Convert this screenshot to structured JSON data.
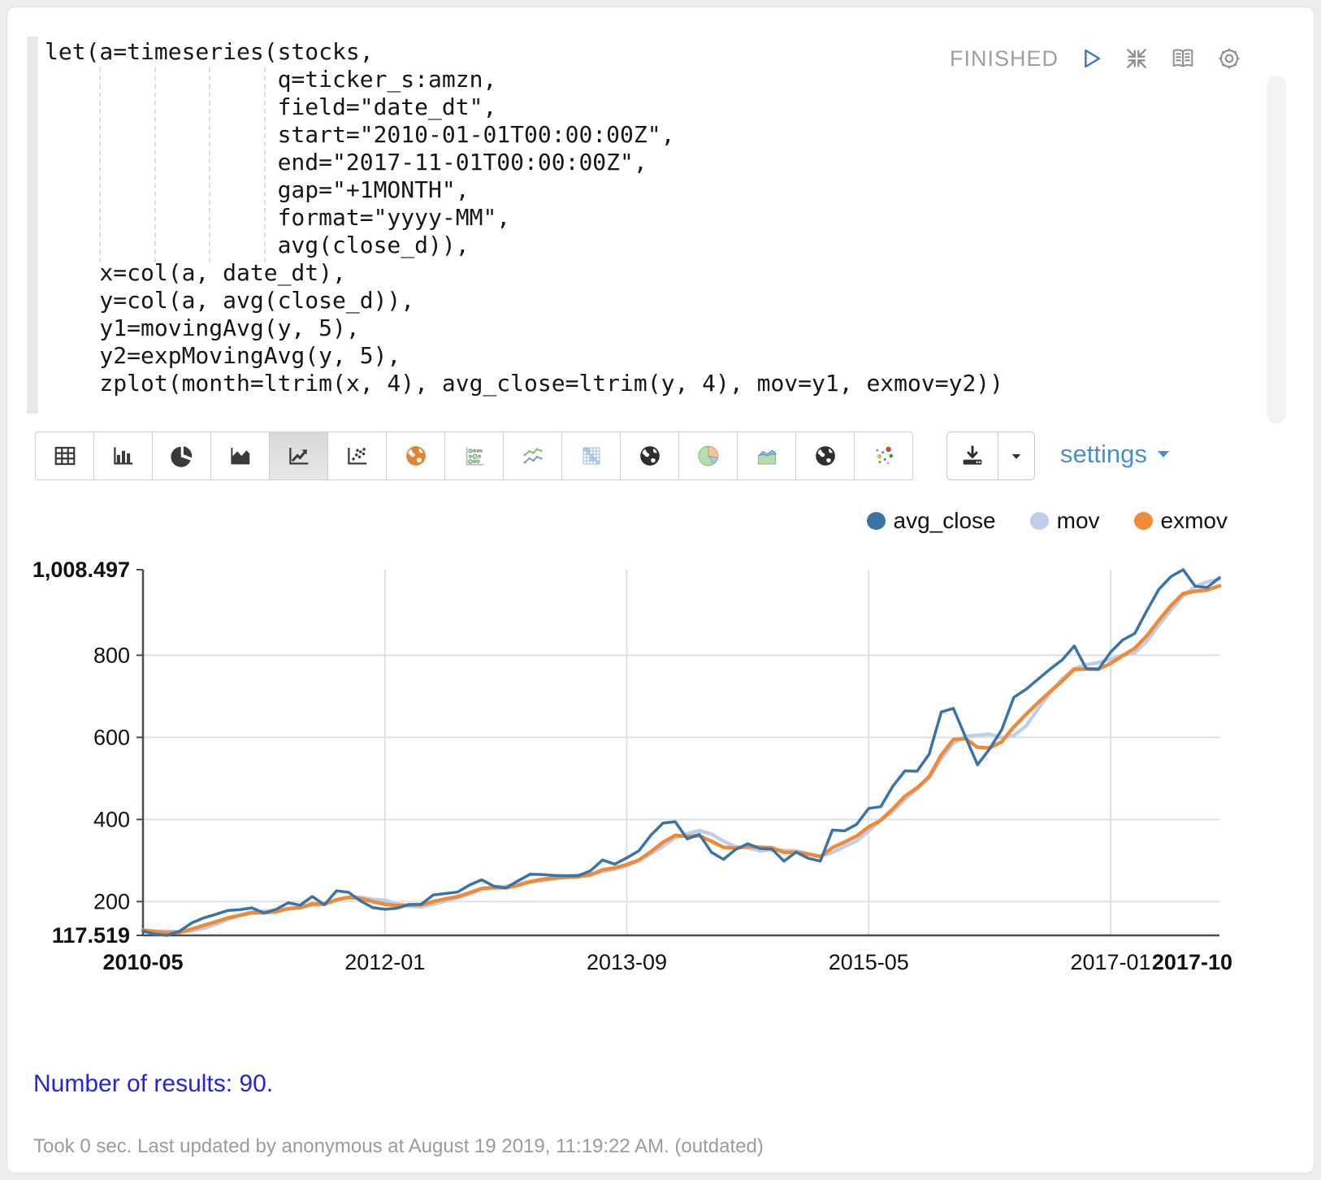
{
  "paragraph": {
    "status": "FINISHED",
    "code_lines": [
      "let(a=timeseries(stocks,",
      "                 q=ticker_s:amzn,",
      "                 field=\"date_dt\",",
      "                 start=\"2010-01-01T00:00:00Z\",",
      "                 end=\"2017-11-01T00:00:00Z\",",
      "                 gap=\"+1MONTH\",",
      "                 format=\"yyyy-MM\",",
      "                 avg(close_d)),",
      "    x=col(a, date_dt),",
      "    y=col(a, avg(close_d)),",
      "    y1=movingAvg(y, 5),",
      "    y2=expMovingAvg(y, 5),",
      "    zplot(month=ltrim(x, 4), avg_close=ltrim(y, 4), mov=y1, exmov=y2))"
    ],
    "results_text": "Number of results: 90.",
    "footer_text": "Took 0 sec. Last updated by anonymous at August 19 2019, 11:19:22 AM. (outdated)"
  },
  "toolbar": {
    "settings_label": "settings",
    "chart_buttons": [
      {
        "icon": "table",
        "selected": false
      },
      {
        "icon": "bar-chart",
        "selected": false
      },
      {
        "icon": "pie-chart",
        "selected": false
      },
      {
        "icon": "area-chart",
        "selected": false
      },
      {
        "icon": "line-chart",
        "selected": true
      },
      {
        "icon": "scatter-chart",
        "selected": false
      },
      {
        "icon": "globe-orange",
        "selected": false
      },
      {
        "icon": "bubble-chart",
        "selected": false
      },
      {
        "icon": "multi-line-chart",
        "selected": false
      },
      {
        "icon": "heatmap",
        "selected": false
      },
      {
        "icon": "globe-dark",
        "selected": false
      },
      {
        "icon": "pie-colored",
        "selected": false
      },
      {
        "icon": "area-colored",
        "selected": false
      },
      {
        "icon": "globe-dark-2",
        "selected": false
      },
      {
        "icon": "scatter-colored",
        "selected": false
      }
    ]
  },
  "legend": [
    {
      "label": "avg_close",
      "color": "#3a73a6"
    },
    {
      "label": "mov",
      "color": "#bdcfe9"
    },
    {
      "label": "exmov",
      "color": "#ee8a38"
    }
  ],
  "chart_data": {
    "type": "line",
    "title": "",
    "xlabel": "",
    "ylabel": "",
    "grid": true,
    "legend_position": "top-right",
    "ylim": [
      117.519,
      1008.497
    ],
    "x": [
      "2010-05",
      "2010-06",
      "2010-07",
      "2010-08",
      "2010-09",
      "2010-10",
      "2010-11",
      "2010-12",
      "2011-01",
      "2011-02",
      "2011-03",
      "2011-04",
      "2011-05",
      "2011-06",
      "2011-07",
      "2011-08",
      "2011-09",
      "2011-10",
      "2011-11",
      "2011-12",
      "2012-01",
      "2012-02",
      "2012-03",
      "2012-04",
      "2012-05",
      "2012-06",
      "2012-07",
      "2012-08",
      "2012-09",
      "2012-10",
      "2012-11",
      "2012-12",
      "2013-01",
      "2013-02",
      "2013-03",
      "2013-04",
      "2013-05",
      "2013-06",
      "2013-07",
      "2013-08",
      "2013-09",
      "2013-10",
      "2013-11",
      "2013-12",
      "2014-01",
      "2014-02",
      "2014-03",
      "2014-04",
      "2014-05",
      "2014-06",
      "2014-07",
      "2014-08",
      "2014-09",
      "2014-10",
      "2014-11",
      "2014-12",
      "2015-01",
      "2015-02",
      "2015-03",
      "2015-04",
      "2015-05",
      "2015-06",
      "2015-07",
      "2015-08",
      "2015-09",
      "2015-10",
      "2015-11",
      "2015-12",
      "2016-01",
      "2016-02",
      "2016-03",
      "2016-04",
      "2016-05",
      "2016-06",
      "2016-07",
      "2016-08",
      "2016-09",
      "2016-10",
      "2016-11",
      "2016-12",
      "2017-01",
      "2017-02",
      "2017-03",
      "2017-04",
      "2017-05",
      "2017-06",
      "2017-07",
      "2017-08",
      "2017-09",
      "2017-10"
    ],
    "series": [
      {
        "name": "avg_close",
        "color": "#3a73a6",
        "values": [
          127.9,
          120.3,
          117.519,
          127.4,
          147.5,
          159.9,
          168.6,
          178.1,
          180.0,
          184.7,
          172.0,
          180.9,
          197.0,
          191.1,
          212.3,
          192.0,
          226.0,
          222.4,
          201.2,
          185.0,
          181.0,
          183.6,
          192.9,
          193.1,
          216.2,
          219.4,
          223.0,
          240.2,
          252.9,
          237.5,
          232.9,
          250.4,
          266.4,
          265.9,
          263.4,
          262.9,
          263.1,
          275.0,
          301.2,
          290.9,
          306.4,
          323.7,
          361.8,
          391.3,
          394.6,
          352.6,
          363.6,
          320.1,
          302.6,
          327.0,
          340.6,
          329.2,
          327.7,
          298.4,
          320.5,
          305.5,
          298.4,
          374.1,
          372.1,
          388.0,
          426.9,
          430.9,
          481.0,
          518.4,
          517.4,
          559.1,
          661.8,
          670.6,
          601.1,
          533.3,
          571.9,
          618.6,
          697.5,
          716.9,
          741.6,
          766.3,
          788.8,
          822.6,
          767.3,
          766.0,
          807.5,
          837.3,
          853.1,
          909.0,
          961.2,
          991.9,
          1008.497,
          967.9,
          965.4,
          989.0
        ]
      },
      {
        "name": "mov",
        "color": "#bdcfe9",
        "values": [
          129.2,
          127.8,
          127.6,
          126.8,
          128.1,
          134.5,
          144.2,
          156.3,
          166.8,
          174.3,
          176.7,
          179.1,
          182.9,
          185.1,
          190.7,
          194.7,
          203.7,
          208.8,
          210.8,
          205.3,
          203.1,
          194.6,
          188.7,
          187.1,
          193.4,
          201.0,
          208.9,
          218.4,
          230.3,
          234.6,
          237.3,
          242.8,
          248.0,
          250.6,
          255.8,
          261.8,
          264.3,
          266.1,
          273.1,
          278.6,
          287.3,
          299.4,
          316.8,
          334.8,
          355.6,
          364.8,
          372.8,
          364.4,
          346.7,
          333.2,
          330.8,
          323.9,
          325.4,
          324.6,
          323.3,
          316.3,
          310.1,
          319.4,
          334.1,
          347.6,
          371.9,
          398.4,
          419.8,
          449.0,
          474.9,
          501.4,
          547.5,
          585.5,
          602.0,
          605.2,
          607.7,
          599.1,
          604.5,
          627.6,
          669.3,
          708.2,
          742.2,
          767.2,
          777.3,
          782.2,
          790.4,
          800.1,
          806.2,
          834.6,
          873.6,
          910.5,
          944.7,
          967.7,
          979.0,
          984.5
        ]
      },
      {
        "name": "exmov",
        "color": "#ee8a38",
        "values": [
          130.3,
          127.0,
          123.8,
          125.0,
          132.5,
          141.6,
          150.6,
          159.8,
          166.5,
          172.6,
          172.4,
          175.2,
          182.5,
          185.4,
          194.3,
          193.6,
          204.4,
          210.4,
          207.3,
          199.9,
          193.6,
          190.3,
          191.1,
          191.8,
          199.9,
          206.4,
          211.9,
          221.4,
          231.9,
          233.8,
          233.5,
          239.1,
          248.2,
          254.1,
          257.2,
          259.1,
          260.4,
          265.3,
          277.3,
          281.8,
          290.0,
          301.2,
          321.4,
          344.7,
          361.3,
          358.4,
          360.2,
          346.8,
          332.1,
          330.4,
          333.8,
          332.3,
          330.7,
          320.0,
          320.1,
          315.3,
          309.6,
          331.1,
          344.8,
          359.2,
          381.8,
          398.1,
          425.8,
          456.6,
          476.9,
          504.3,
          556.8,
          594.7,
          596.9,
          575.7,
          574.4,
          589.1,
          625.3,
          655.8,
          684.4,
          711.7,
          737.4,
          765.8,
          766.3,
          766.2,
          780.0,
          799.1,
          817.1,
          847.7,
          885.6,
          921.0,
          950.2,
          956.1,
          959.2,
          969.1
        ]
      }
    ],
    "y_ticks": [
      {
        "label": "1,008.497",
        "value": 1008.497,
        "bold": true,
        "grid": false
      },
      {
        "label": "800",
        "value": 800,
        "bold": false,
        "grid": true
      },
      {
        "label": "600",
        "value": 600,
        "bold": false,
        "grid": true
      },
      {
        "label": "400",
        "value": 400,
        "bold": false,
        "grid": true
      },
      {
        "label": "200",
        "value": 200,
        "bold": false,
        "grid": true
      },
      {
        "label": "117.519",
        "value": 117.519,
        "bold": true,
        "grid": false
      }
    ],
    "x_ticks": [
      {
        "label": "2010-05",
        "index": 0,
        "bold": true,
        "grid": false
      },
      {
        "label": "2012-01",
        "index": 20,
        "bold": false,
        "grid": true
      },
      {
        "label": "2013-09",
        "index": 40,
        "bold": false,
        "grid": true
      },
      {
        "label": "2015-05",
        "index": 60,
        "bold": false,
        "grid": true
      },
      {
        "label": "2017-01",
        "index": 80,
        "bold": false,
        "grid": true
      },
      {
        "label": "2017-10",
        "index": 89,
        "bold": true,
        "grid": false
      }
    ]
  }
}
